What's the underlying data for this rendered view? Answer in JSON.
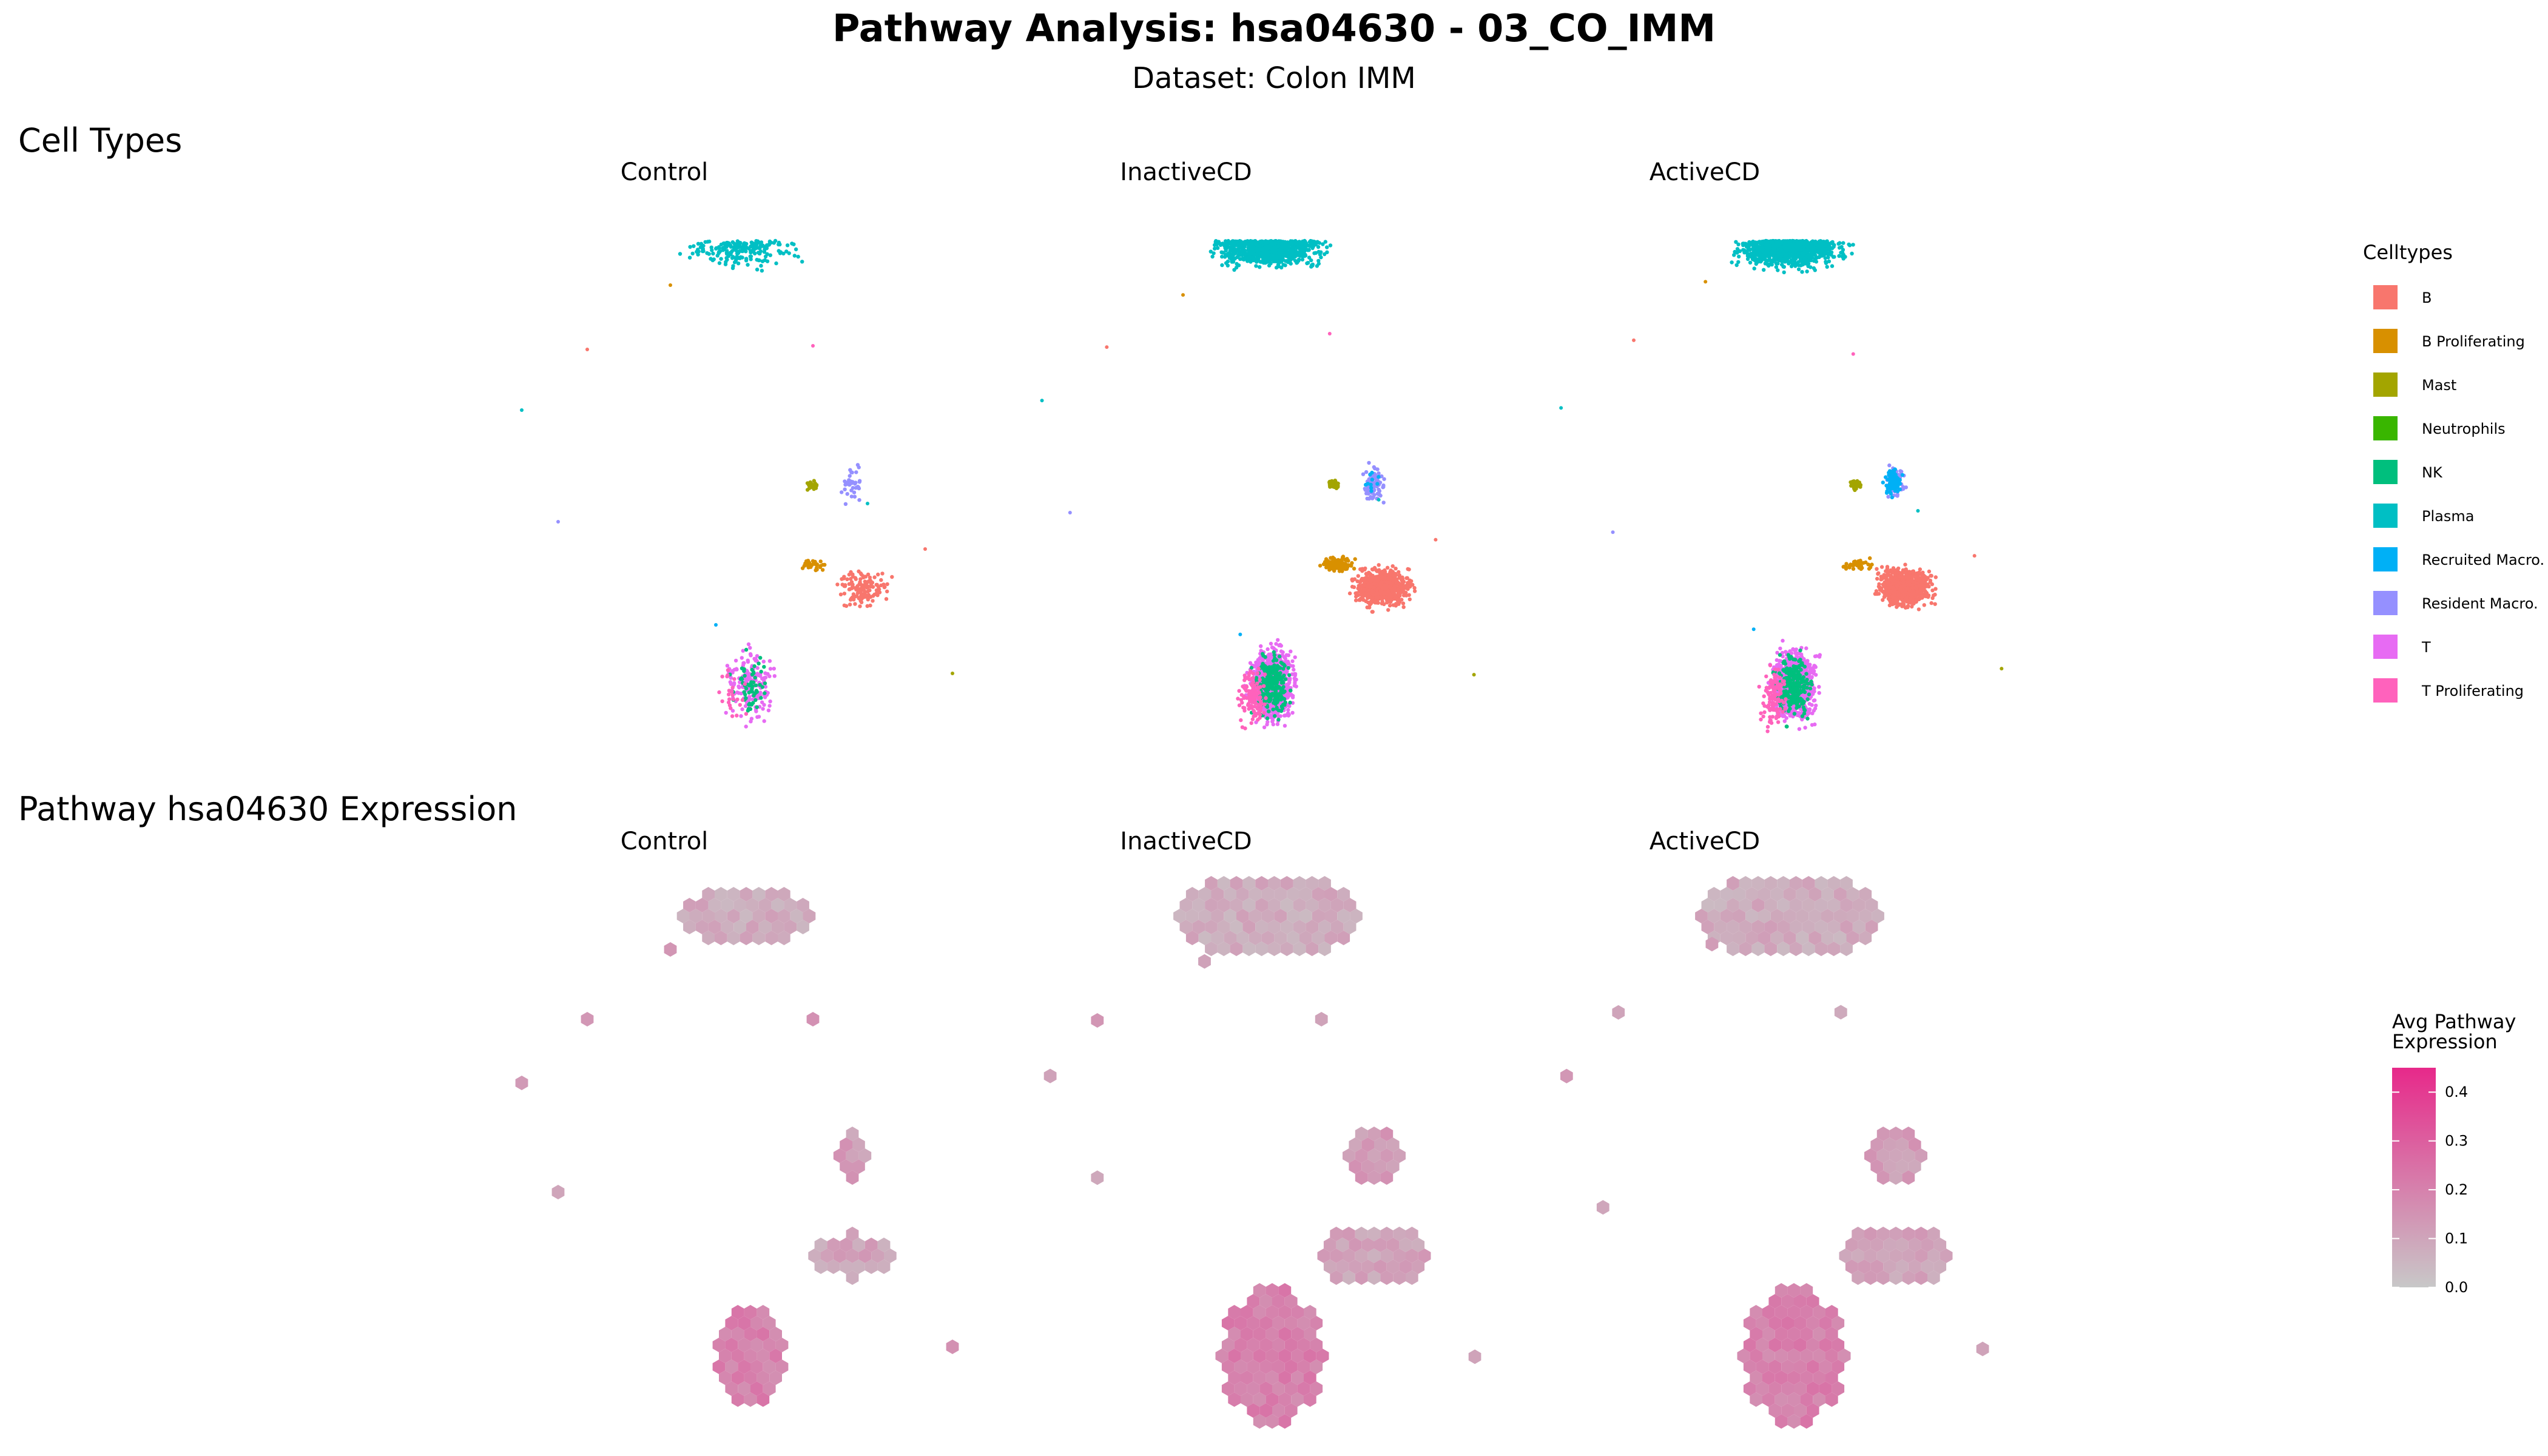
{
  "title": "Pathway Analysis: hsa04630 - 03_CO_IMM",
  "subtitle": "Dataset: Colon IMM",
  "sections": {
    "top": "Cell Types",
    "bottom": "Pathway hsa04630 Expression"
  },
  "conditions": [
    "Control",
    "InactiveCD",
    "ActiveCD"
  ],
  "celltype_legend": {
    "title": "Celltypes",
    "items": [
      {
        "label": "B",
        "color": "#F8766D"
      },
      {
        "label": "B Proliferating",
        "color": "#D89000"
      },
      {
        "label": "Mast",
        "color": "#A3A500"
      },
      {
        "label": "Neutrophils",
        "color": "#39B600"
      },
      {
        "label": "NK",
        "color": "#00BF7D"
      },
      {
        "label": "Plasma",
        "color": "#00BFC4"
      },
      {
        "label": "Recruited Macro.",
        "color": "#00B0F6"
      },
      {
        "label": "Resident Macro.",
        "color": "#9590FF"
      },
      {
        "label": "T",
        "color": "#E76BF3"
      },
      {
        "label": "T Proliferating",
        "color": "#FF62BC"
      }
    ]
  },
  "expression_legend": {
    "title_line1": "Avg Pathway",
    "title_line2": "Expression",
    "ticks": [
      "0.4",
      "0.3",
      "0.2",
      "0.1",
      "0.0"
    ],
    "low_color": "#C8C8C8",
    "high_color": "#E7298A",
    "range": [
      0.0,
      0.45
    ]
  },
  "chart_data": [
    {
      "type": "scatter",
      "title": "Cell Types",
      "panels": [
        "Control",
        "InactiveCD",
        "ActiveCD"
      ],
      "color_by": "Celltypes",
      "clusters": [
        {
          "celltype": "Plasma",
          "region": "top"
        },
        {
          "celltype": "Resident Macro.",
          "region": "upper-middle right"
        },
        {
          "celltype": "Mast",
          "region": "upper-middle"
        },
        {
          "celltype": "B",
          "region": "middle right"
        },
        {
          "celltype": "B Proliferating",
          "region": "middle"
        },
        {
          "celltype": "T",
          "region": "bottom"
        },
        {
          "celltype": "NK",
          "region": "bottom"
        },
        {
          "celltype": "T Proliferating",
          "region": "bottom left"
        },
        {
          "celltype": "Recruited Macro.",
          "region": "upper-middle right"
        }
      ]
    },
    {
      "type": "heatmap",
      "title": "Pathway hsa04630 Expression",
      "panels": [
        "Control",
        "InactiveCD",
        "ActiveCD"
      ],
      "value": "Avg Pathway Expression",
      "range": [
        0.0,
        0.45
      ],
      "typical_values": {
        "Plasma": 0.08,
        "Macro": 0.12,
        "B": 0.1,
        "T": 0.2
      }
    }
  ]
}
